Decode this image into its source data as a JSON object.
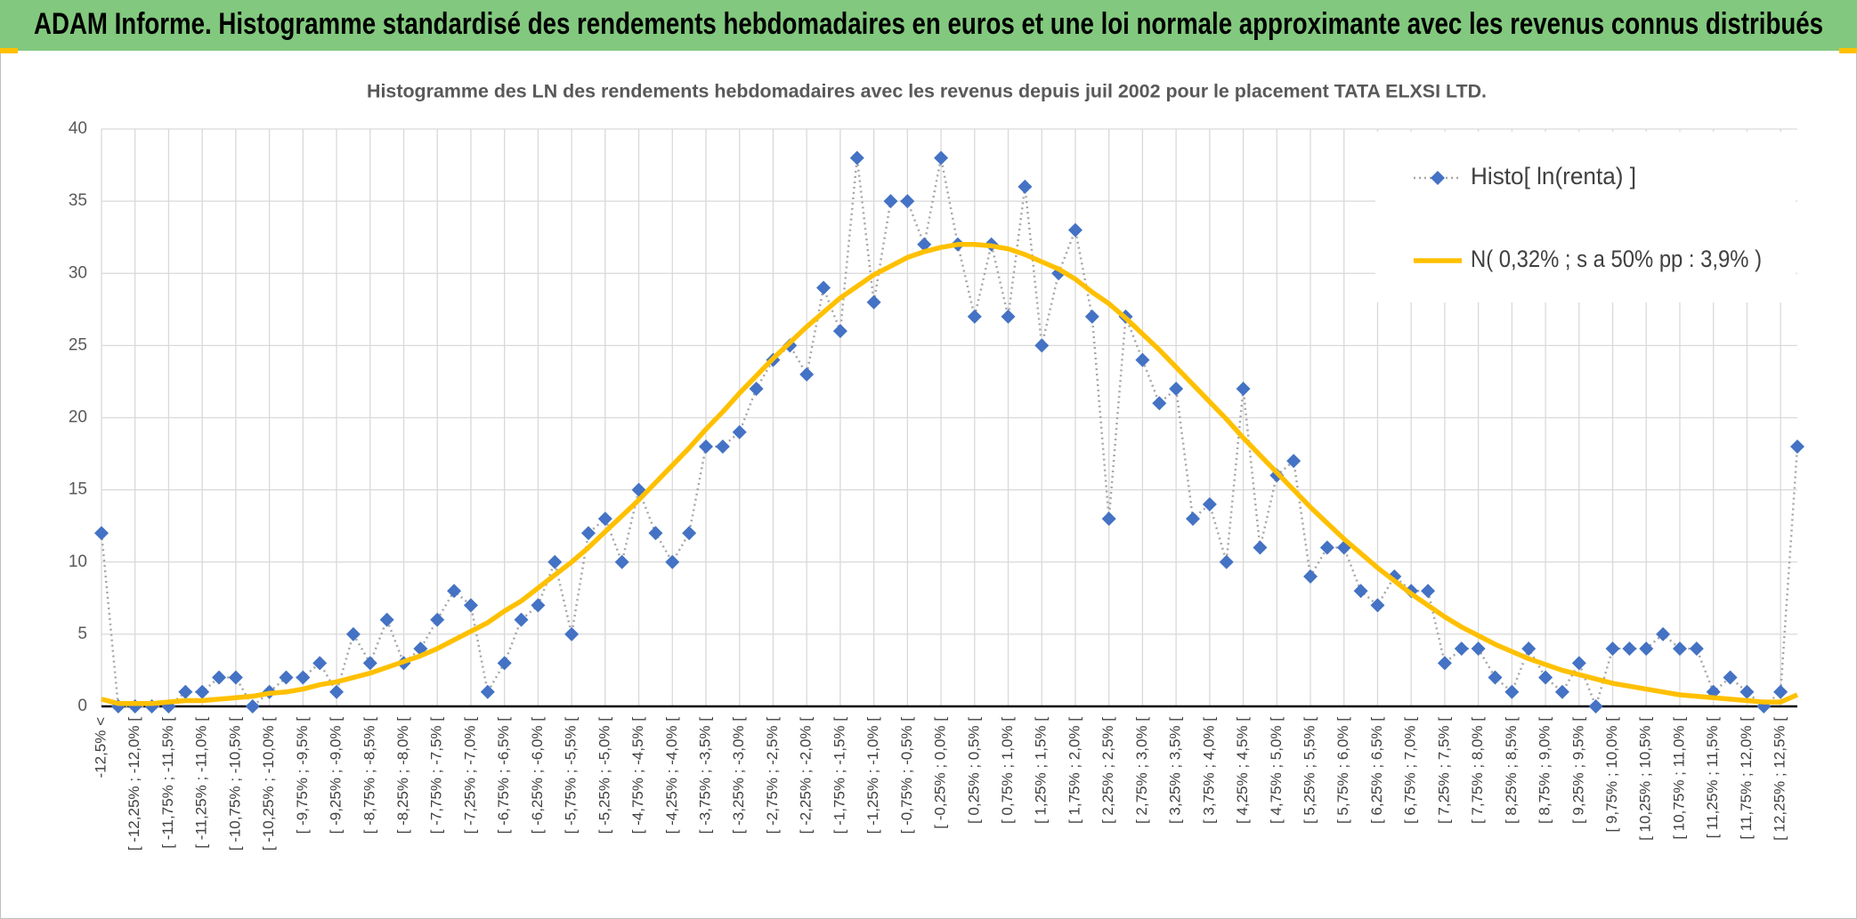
{
  "chart_data": {
    "type": "line",
    "header": "ADAM Informe. Histogramme standardisé des rendements hebdomadaires en euros et une loi normale approximante avec les revenus connus distribués",
    "title": "Histogramme des LN des rendements hebdomadaires avec les revenus depuis juil 2002 pour le placement TATA ELXSI LTD.",
    "categories": [
      "-12,5% <",
      null,
      "[ -12,25% ; -12,0% [",
      null,
      "[ -11,75% ; -11,5% [",
      null,
      "[ -11,25% ; -11,0% [",
      null,
      "[ -10,75% ; -10,5% [",
      null,
      "[ -10,25% ; -10,0% [",
      null,
      "[ -9,75% ; -9,5% [",
      null,
      "[ -9,25% ; -9,0% [",
      null,
      "[ -8,75% ; -8,5% [",
      null,
      "[ -8,25% ; -8,0% [",
      null,
      "[ -7,75% ; -7,5% [",
      null,
      "[ -7,25% ; -7,0% [",
      null,
      "[ -6,75% ; -6,5% [",
      null,
      "[ -6,25% ; -6,0% [",
      null,
      "[ -5,75% ; -5,5% [",
      null,
      "[ -5,25% ; -5,0% [",
      null,
      "[ -4,75% ; -4,5% [",
      null,
      "[ -4,25% ; -4,0% [",
      null,
      "[ -3,75% ; -3,5% [",
      null,
      "[ -3,25% ; -3,0% [",
      null,
      "[ -2,75% ; -2,5% [",
      null,
      "[ -2,25% ; -2,0% [",
      null,
      "[ -1,75% ; -1,5% [",
      null,
      "[ -1,25% ; -1,0% [",
      null,
      "[ -0,75% ; -0,5% [",
      null,
      "[ -0,25% ; 0,0% [",
      null,
      "[ 0,25% ; 0,5% [",
      null,
      "[ 0,75% ; 1,0% [",
      null,
      "[ 1,25% ; 1,5% [",
      null,
      "[ 1,75% ; 2,0% [",
      null,
      "[ 2,25% ; 2,5% [",
      null,
      "[ 2,75% ; 3,0% [",
      null,
      "[ 3,25% ; 3,5% [",
      null,
      "[ 3,75% ; 4,0% [",
      null,
      "[ 4,25% ; 4,5% [",
      null,
      "[ 4,75% ; 5,0% [",
      null,
      "[ 5,25% ; 5,5% [",
      null,
      "[ 5,75% ; 6,0% [",
      null,
      "[ 6,25% ; 6,5% [",
      null,
      "[ 6,75% ; 7,0% [",
      null,
      "[ 7,25% ; 7,5% [",
      null,
      "[ 7,75% ; 8,0% [",
      null,
      "[ 8,25% ; 8,5% [",
      null,
      "[ 8,75% ; 9,0% [",
      null,
      "[ 9,25% ; 9,5% [",
      null,
      "[ 9,75% ; 10,0% [",
      null,
      "[ 10,25% ; 10,5% [",
      null,
      "[ 10,75% ; 11,0% [",
      null,
      "[ 11,25% ; 11,5% [",
      null,
      "[ 11,75% ; 12,0% [",
      null,
      "[ 12,25% ; 12,5% [",
      null
    ],
    "series": [
      {
        "name": "Histo[ ln(renta) ]",
        "color": "#4472c4",
        "values": [
          12,
          0,
          0,
          0,
          0,
          1,
          1,
          2,
          2,
          0,
          1,
          2,
          2,
          3,
          1,
          5,
          3,
          6,
          3,
          4,
          6,
          8,
          7,
          1,
          3,
          6,
          7,
          10,
          5,
          12,
          13,
          10,
          15,
          12,
          10,
          12,
          18,
          18,
          19,
          22,
          24,
          25,
          23,
          29,
          26,
          38,
          28,
          35,
          35,
          32,
          38,
          32,
          27,
          32,
          27,
          36,
          25,
          30,
          33,
          27,
          13,
          27,
          24,
          21,
          22,
          13,
          14,
          10,
          22,
          11,
          16,
          17,
          9,
          11,
          11,
          8,
          7,
          9,
          8,
          8,
          3,
          4,
          4,
          2,
          1,
          4,
          2,
          1,
          3,
          0,
          4,
          4,
          4,
          5,
          4,
          4,
          1,
          2,
          1,
          0,
          1,
          18
        ]
      },
      {
        "name": "N( 0,32% ; s a 50% pp : 3,9% )",
        "color": "#ffc000",
        "values": [
          0.5,
          0.2,
          0.2,
          0.2,
          0.3,
          0.4,
          0.4,
          0.5,
          0.6,
          0.7,
          0.9,
          1.0,
          1.2,
          1.5,
          1.7,
          2.0,
          2.3,
          2.7,
          3.1,
          3.5,
          4.0,
          4.6,
          5.2,
          5.8,
          6.6,
          7.3,
          8.2,
          9.1,
          10.0,
          11.0,
          12.1,
          13.2,
          14.3,
          15.5,
          16.7,
          17.9,
          19.2,
          20.4,
          21.7,
          22.9,
          24.1,
          25.2,
          26.3,
          27.3,
          28.3,
          29.1,
          29.9,
          30.5,
          31.1,
          31.5,
          31.8,
          32.0,
          32.0,
          31.9,
          31.7,
          31.3,
          30.8,
          30.3,
          29.6,
          28.7,
          27.9,
          26.9,
          25.8,
          24.7,
          23.5,
          22.3,
          21.1,
          19.9,
          18.6,
          17.4,
          16.2,
          15.0,
          13.8,
          12.7,
          11.6,
          10.6,
          9.6,
          8.7,
          7.8,
          7.0,
          6.2,
          5.5,
          4.9,
          4.3,
          3.8,
          3.3,
          2.9,
          2.5,
          2.2,
          1.9,
          1.6,
          1.4,
          1.2,
          1.0,
          0.8,
          0.7,
          0.6,
          0.5,
          0.4,
          0.3,
          0.3,
          0.8
        ]
      }
    ],
    "ylim": [
      0,
      40
    ],
    "yticks": [
      0,
      5,
      10,
      15,
      20,
      25,
      30,
      35,
      40
    ],
    "grid": true,
    "legend": "upper right"
  }
}
